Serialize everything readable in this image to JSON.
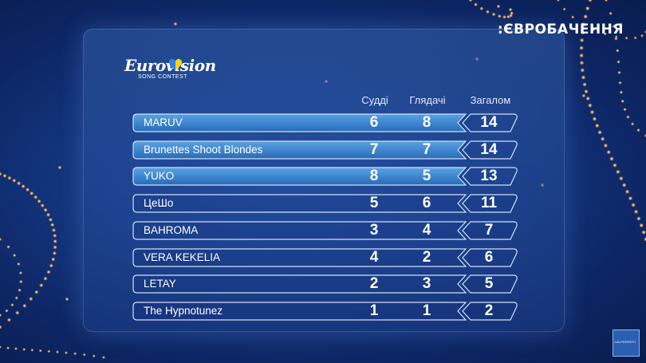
{
  "broadcaster": ":ЄВРОБАЧЕННЯ",
  "logo": {
    "word": "Eurovision",
    "sub": "SONG CONTEST"
  },
  "columns": {
    "jury": "Судді",
    "viewers": "Глядачі",
    "total": "Загалом"
  },
  "rows": [
    {
      "name": "MARUV",
      "jury": "6",
      "viewers": "8",
      "total": "14",
      "highlight": true
    },
    {
      "name": "Brunettes Shoot Blondes",
      "jury": "7",
      "viewers": "7",
      "total": "14",
      "highlight": true
    },
    {
      "name": "YUKO",
      "jury": "8",
      "viewers": "5",
      "total": "13",
      "highlight": true
    },
    {
      "name": "ЦеШо",
      "jury": "5",
      "viewers": "6",
      "total": "11",
      "highlight": false
    },
    {
      "name": "BAHROMA",
      "jury": "3",
      "viewers": "4",
      "total": "7",
      "highlight": false
    },
    {
      "name": "VERA KEKELIA",
      "jury": "4",
      "viewers": "2",
      "total": "6",
      "highlight": false
    },
    {
      "name": "LETAY",
      "jury": "2",
      "viewers": "3",
      "total": "5",
      "highlight": false
    },
    {
      "name": "The Hypnotunez",
      "jury": "1",
      "viewers": "1",
      "total": "2",
      "highlight": false
    }
  ],
  "badge": "UA:PERSHYI",
  "colors": {
    "highlight": "#3f86cf",
    "frame": "#cfe0f6",
    "background": "#163a86"
  }
}
